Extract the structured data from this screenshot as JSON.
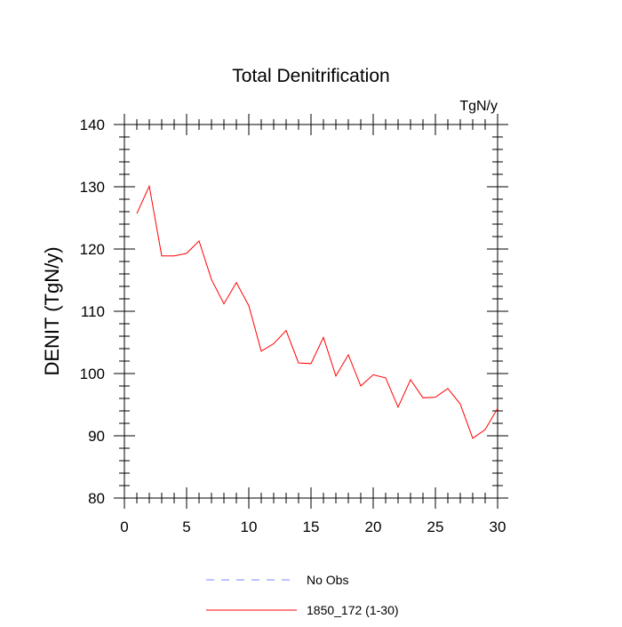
{
  "chart_data": {
    "type": "line",
    "title": "Total Denitrification",
    "units_label": "TgN/y",
    "xlabel": "",
    "ylabel": "DENIT  (TgN/y)",
    "xlim": [
      0,
      30
    ],
    "ylim": [
      80,
      140
    ],
    "x_ticks": [
      0,
      5,
      10,
      15,
      20,
      25,
      30
    ],
    "x_tick_labels": [
      "0",
      "5",
      "10",
      "15",
      "20",
      "25",
      "30"
    ],
    "y_ticks": [
      80,
      90,
      100,
      110,
      120,
      130,
      140
    ],
    "y_tick_labels": [
      "80",
      "90",
      "100",
      "110",
      "120",
      "130",
      "140"
    ],
    "grid": false,
    "legend_position": "bottom",
    "series": [
      {
        "name": "1850_172 (1-30)",
        "color": "#ff0000",
        "style": "solid",
        "x": [
          1,
          2,
          3,
          4,
          5,
          6,
          7,
          8,
          9,
          10,
          11,
          12,
          13,
          14,
          15,
          16,
          17,
          18,
          19,
          20,
          21,
          22,
          23,
          24,
          25,
          26,
          27,
          28,
          29,
          30
        ],
        "values": [
          125.7,
          130.1,
          118.9,
          118.9,
          119.3,
          121.3,
          115.1,
          111.2,
          114.6,
          110.9,
          103.6,
          104.8,
          106.9,
          101.7,
          101.6,
          105.8,
          99.6,
          103.0,
          98.0,
          99.8,
          99.3,
          94.6,
          99.0,
          96.1,
          96.2,
          97.6,
          95.1,
          89.6,
          91.0,
          94.4
        ]
      }
    ],
    "legend": [
      {
        "label": "No Obs",
        "color": "#8080ff",
        "style": "dashed"
      },
      {
        "label": "1850_172 (1-30)",
        "color": "#ff0000",
        "style": "solid"
      }
    ]
  }
}
